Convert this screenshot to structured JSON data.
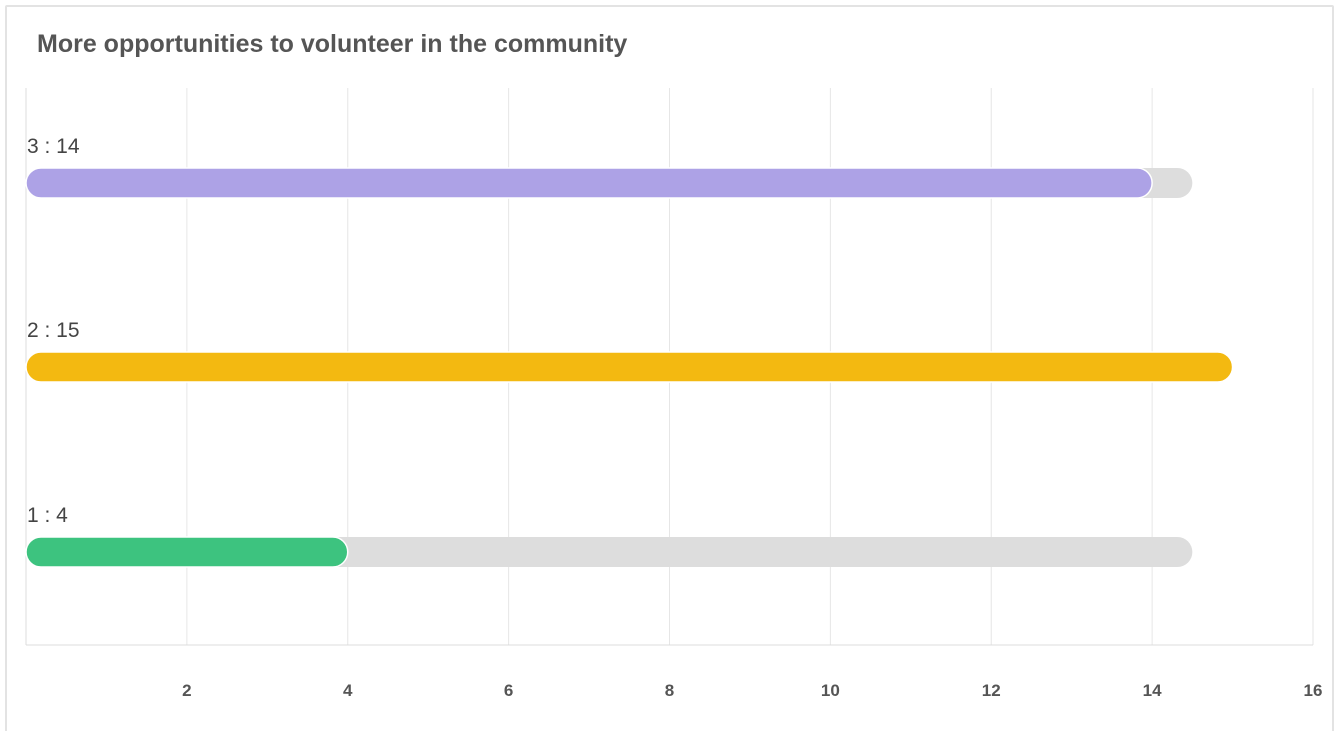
{
  "chart_data": {
    "type": "bar",
    "orientation": "horizontal",
    "title": "More opportunities to volunteer in the community",
    "categories": [
      "3",
      "2",
      "1"
    ],
    "values": [
      14,
      15,
      4
    ],
    "labels": [
      "3 : 14",
      "2 : 15",
      "1 : 4"
    ],
    "colors": [
      "#ada2e6",
      "#f3b911",
      "#3dc37f"
    ],
    "track_color": "#dddddd",
    "track_max": 14.5,
    "xlim": [
      0,
      16
    ],
    "xticks": [
      2,
      4,
      6,
      8,
      10,
      12,
      14,
      16
    ],
    "xlabel": "",
    "ylabel": "",
    "grid": true,
    "legend": "none"
  }
}
